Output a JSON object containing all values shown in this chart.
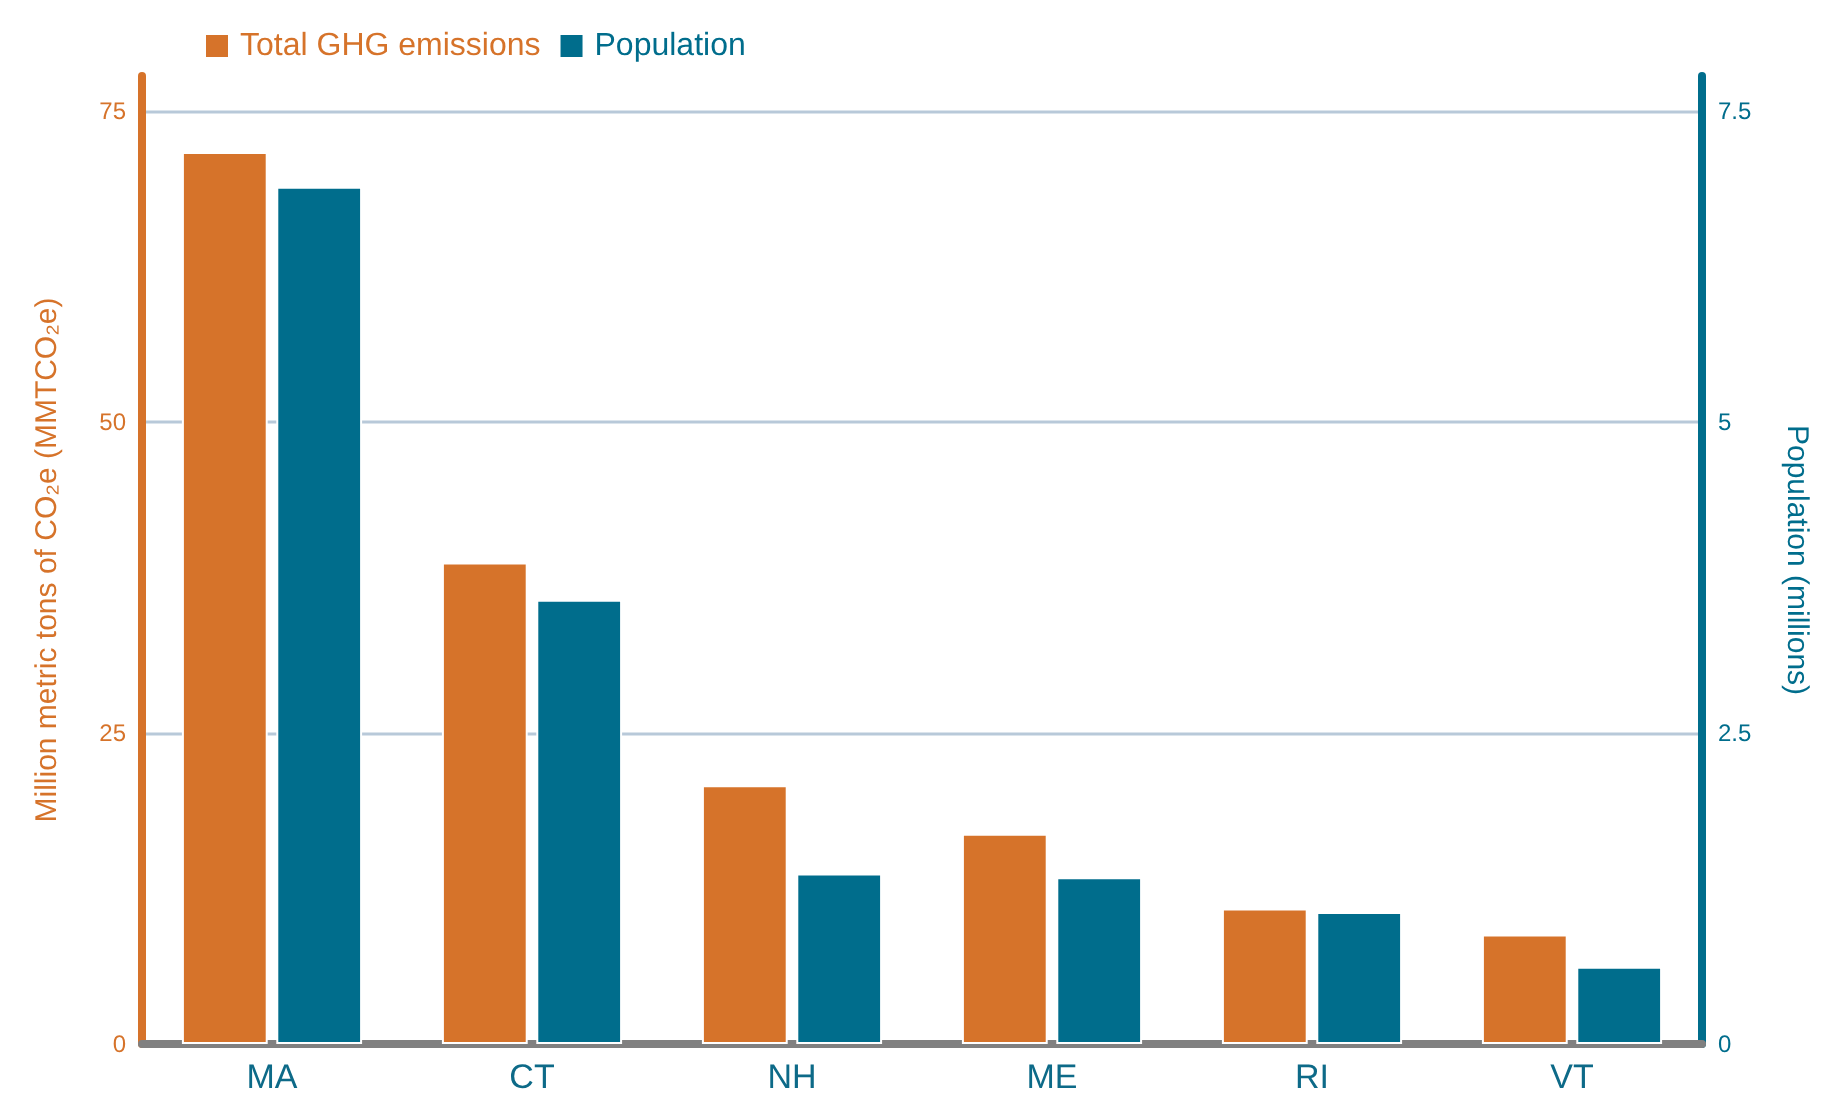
{
  "chart_data": {
    "type": "bar",
    "categories": [
      "MA",
      "CT",
      "NH",
      "ME",
      "RI",
      "VT"
    ],
    "series": [
      {
        "name": "Total GHG emissions",
        "color": "#d6732a",
        "values": [
          71.7,
          38.7,
          20.8,
          16.9,
          10.9,
          8.8
        ]
      },
      {
        "name": "Population",
        "color": "#006d8c",
        "axis": "y2",
        "values": [
          6.89,
          3.57,
          1.37,
          1.34,
          1.06,
          0.62
        ]
      }
    ],
    "ylabel": "Million metric tons of CO₂e (MMTCO₂e)",
    "y2label": "Population (millions)",
    "ylim": [
      0,
      77.8
    ],
    "yticks": [
      0,
      25,
      50,
      75
    ],
    "y2lim": [
      0,
      7.78
    ],
    "y2ticks": [
      0,
      2.5,
      5,
      7.5
    ],
    "grid": "y",
    "legend": "top left"
  }
}
